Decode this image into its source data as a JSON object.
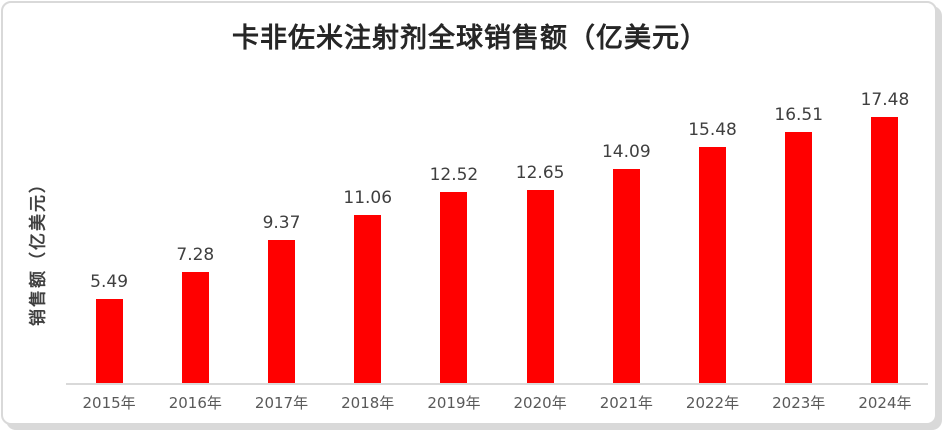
{
  "chart_data": {
    "type": "bar",
    "title": "卡非佐米注射剂全球销售额（亿美元）",
    "ylabel": "销售额（亿美元）",
    "xlabel": "",
    "categories": [
      "2015年",
      "2016年",
      "2017年",
      "2018年",
      "2019年",
      "2020年",
      "2021年",
      "2022年",
      "2023年",
      "2024年"
    ],
    "values": [
      5.49,
      7.28,
      9.37,
      11.06,
      12.52,
      12.65,
      14.09,
      15.48,
      16.51,
      17.48
    ],
    "value_labels": [
      "5.49",
      "7.28",
      "9.37",
      "11.06",
      "12.52",
      "12.65",
      "14.09",
      "15.48",
      "16.51",
      "17.48"
    ],
    "ylim": [
      0,
      18
    ],
    "grid": false,
    "legend": "none",
    "data_labels": "above bars",
    "colors": {
      "bar": "#ff0000",
      "dlabel": "#3f3f3f",
      "xtick": "#595959",
      "axis": "#d9d9d9",
      "frame": "#d9d9d9",
      "title": "#262626",
      "ytitle": "#404040"
    }
  }
}
